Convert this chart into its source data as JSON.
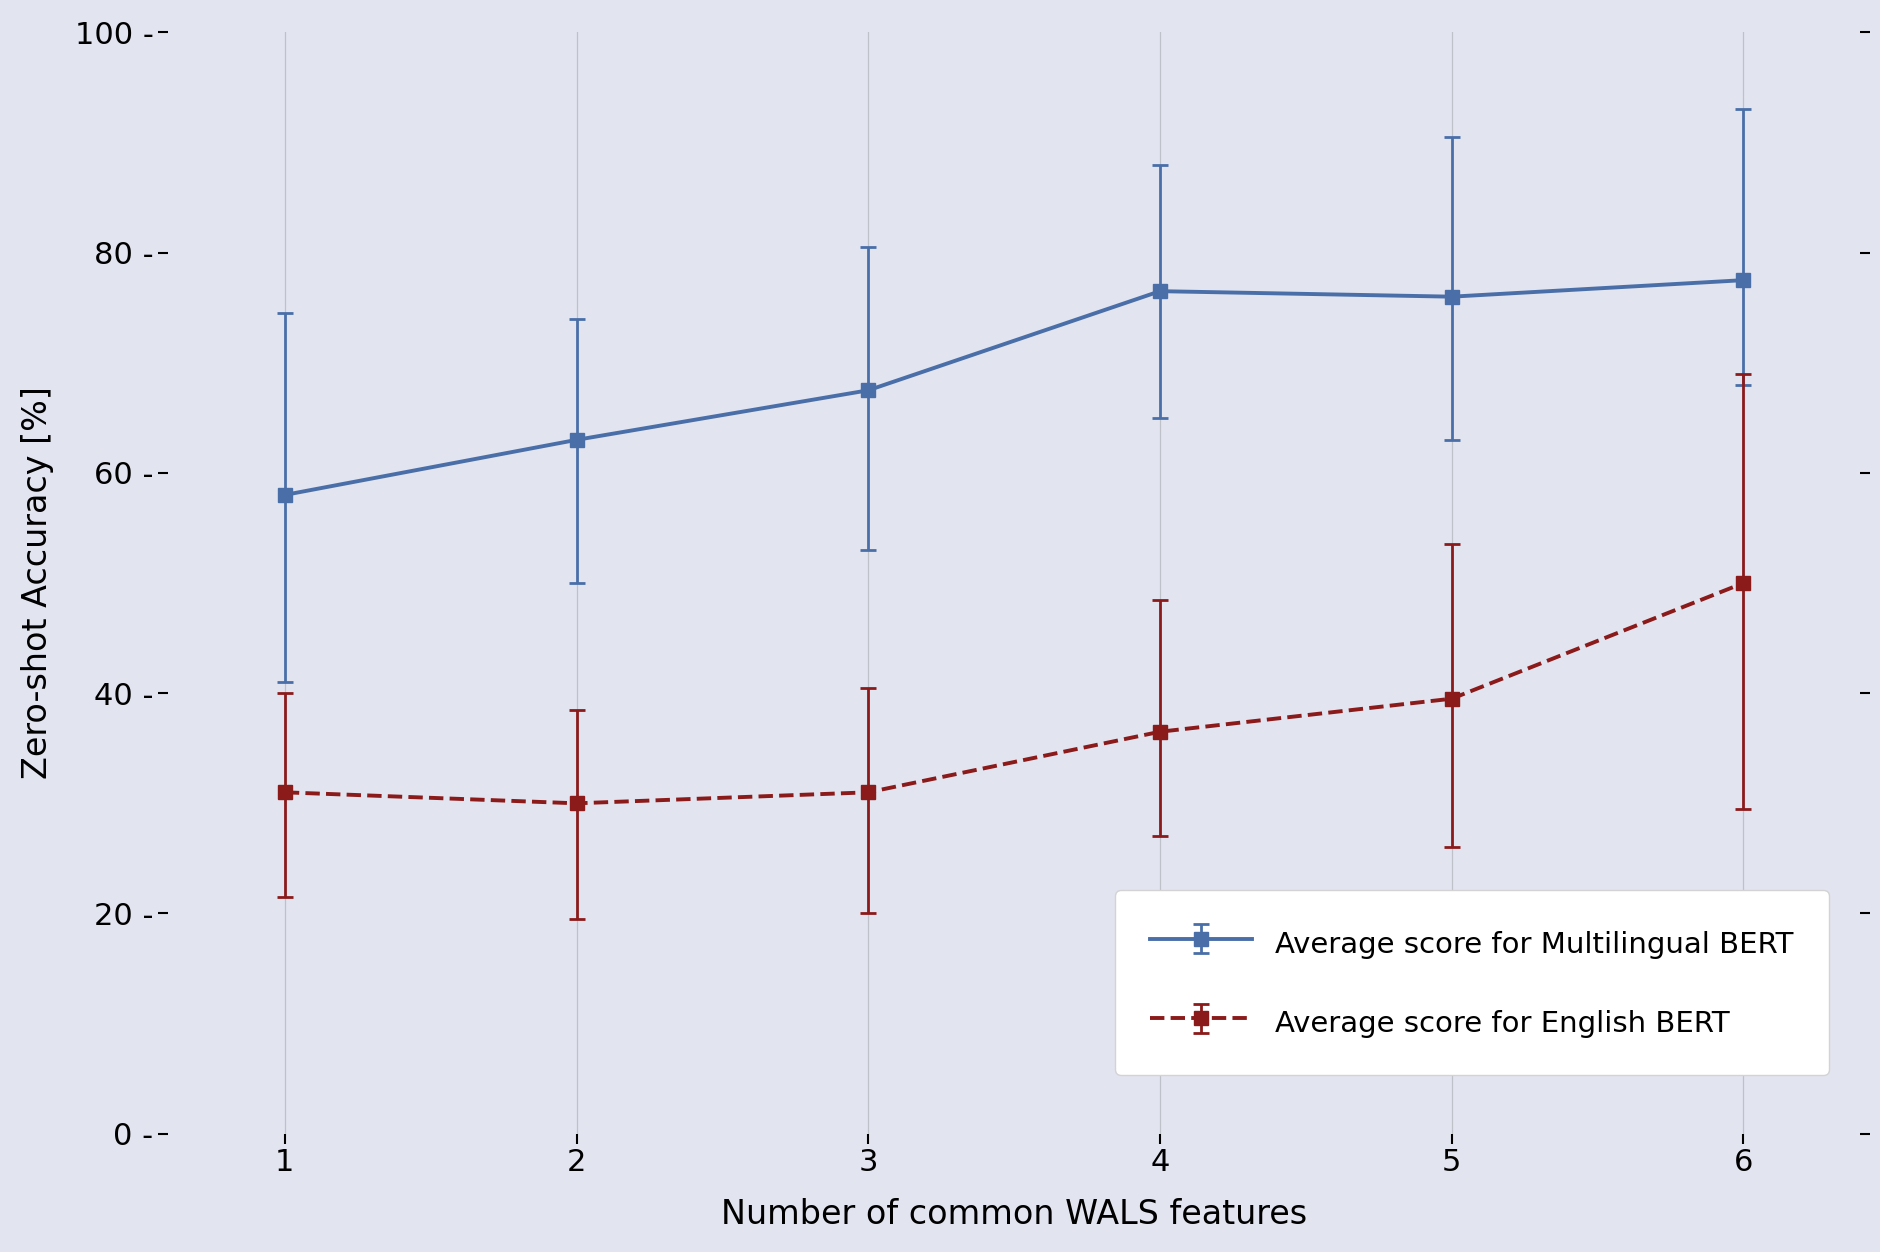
{
  "x": [
    1,
    2,
    3,
    4,
    5,
    6
  ],
  "mbert_y": [
    58.0,
    63.0,
    67.5,
    76.5,
    76.0,
    77.5
  ],
  "mbert_yerr_upper": [
    16.5,
    11.0,
    13.0,
    11.5,
    14.5,
    15.5
  ],
  "mbert_yerr_lower": [
    17.0,
    13.0,
    14.5,
    11.5,
    13.0,
    9.5
  ],
  "ebert_y": [
    31.0,
    30.0,
    31.0,
    36.5,
    39.5,
    50.0
  ],
  "ebert_yerr_upper": [
    9.0,
    8.5,
    9.5,
    12.0,
    14.0,
    19.0
  ],
  "ebert_yerr_lower": [
    9.5,
    10.5,
    11.0,
    9.5,
    13.5,
    20.5
  ],
  "mbert_color": "#4a6fa8",
  "ebert_color": "#8b1a1a",
  "background_color": "#e2e4ef",
  "ylabel": "Zero-shot Accuracy [%]",
  "xlabel": "Number of common WALS features",
  "ylim": [
    0,
    100
  ],
  "xlim": [
    0.6,
    6.4
  ],
  "legend_mbert": "Average score for Multilingual BERT",
  "legend_ebert": "Average score for English BERT",
  "yticks": [
    0,
    20,
    40,
    60,
    80,
    100
  ],
  "ytick_labels": [
    "0 -",
    "20 -",
    "40 -",
    "60 -",
    "80 -",
    "100 -"
  ]
}
